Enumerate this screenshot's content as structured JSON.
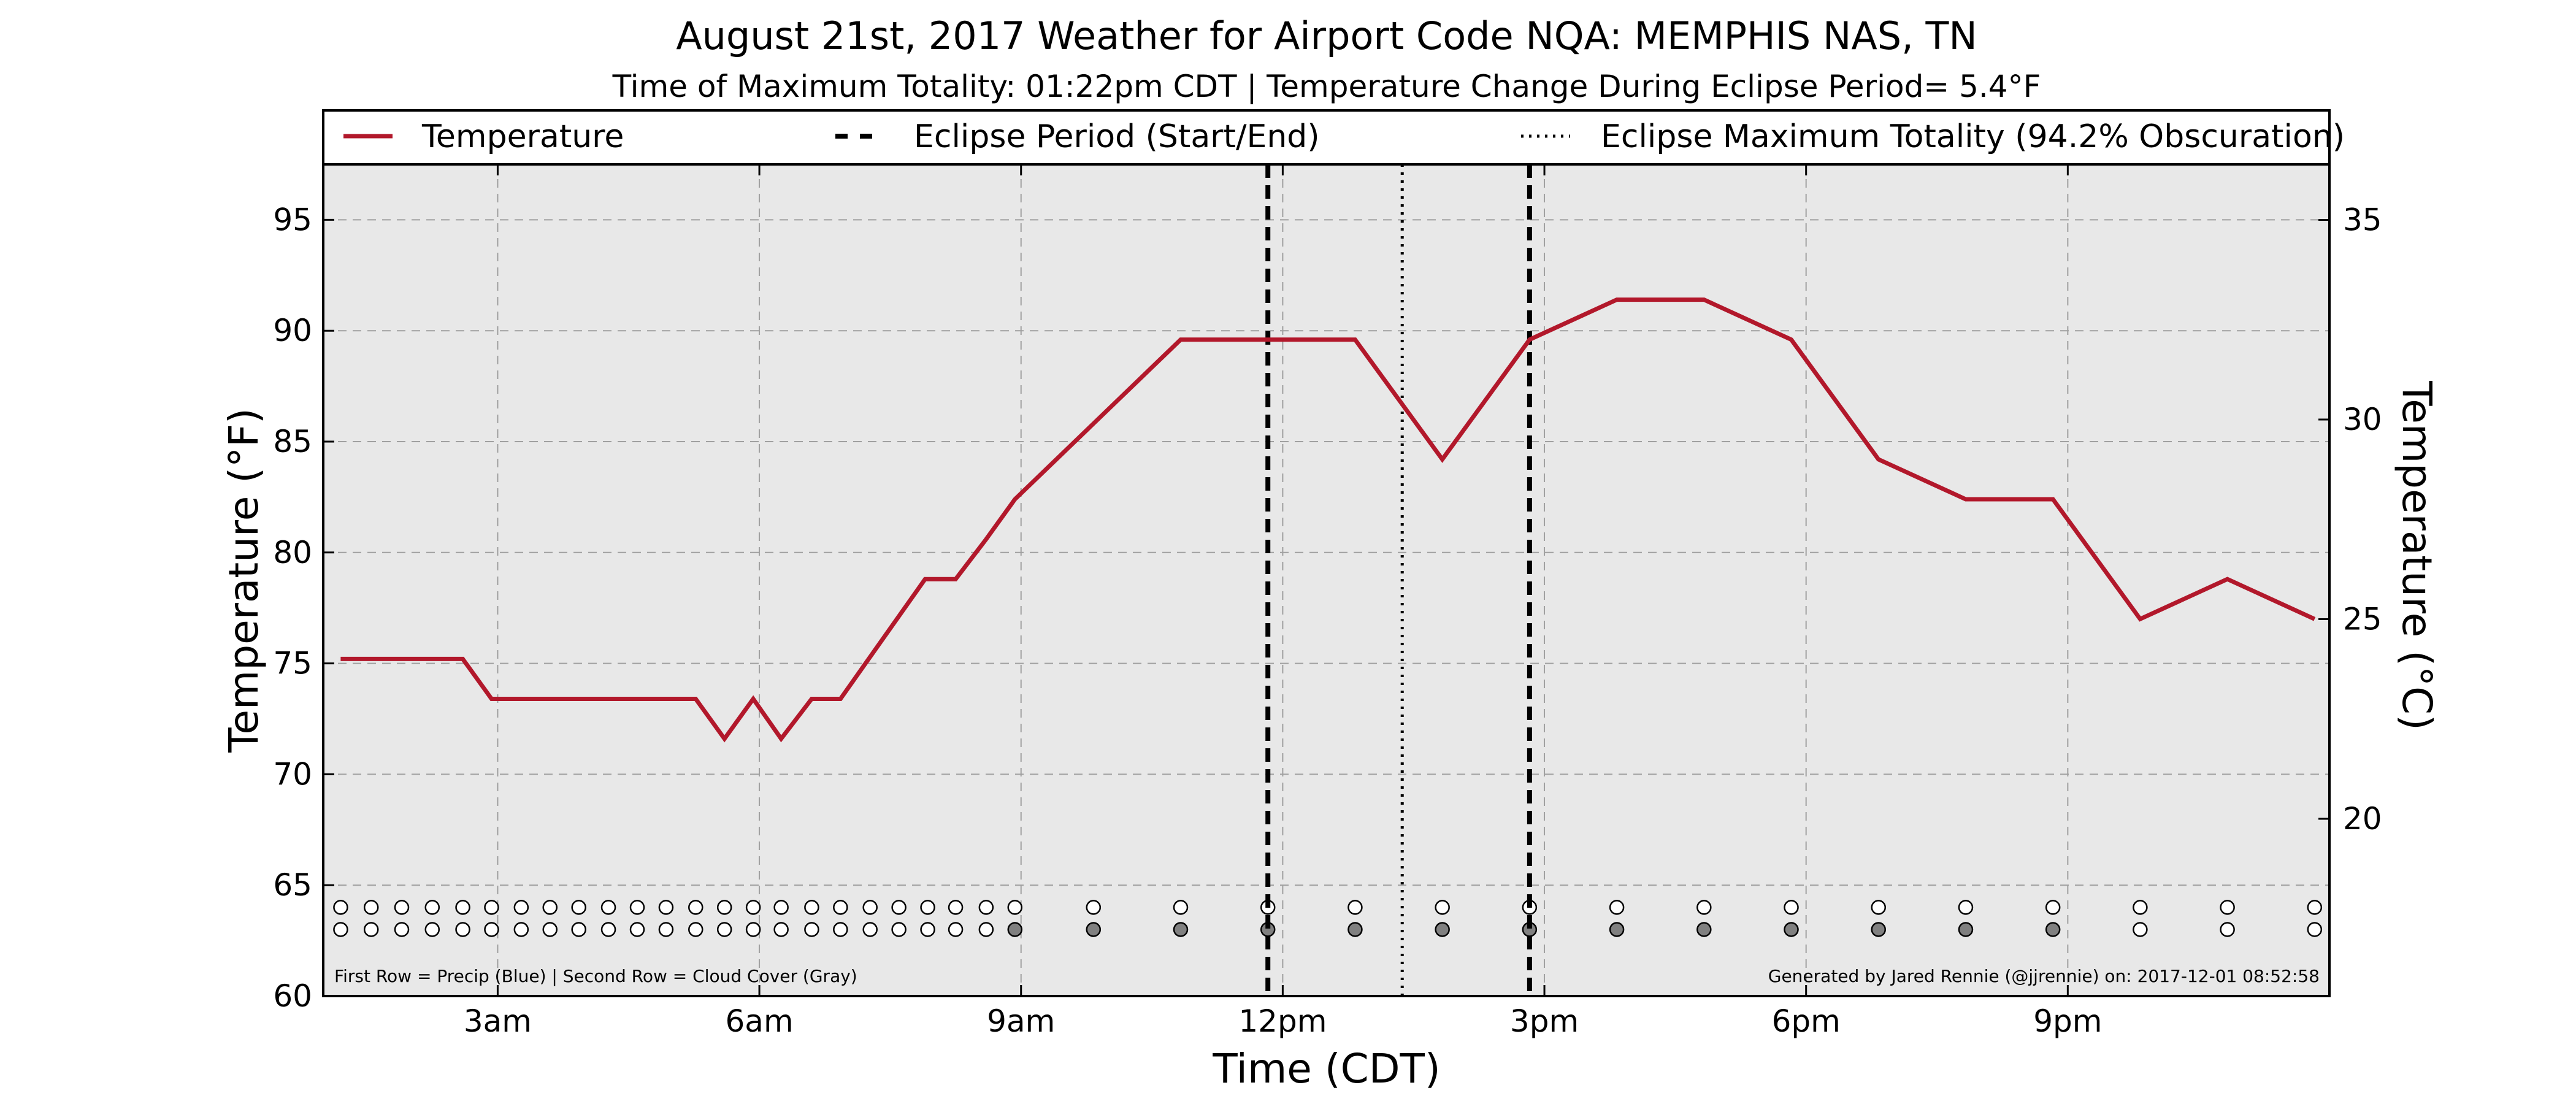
{
  "chart_data": {
    "type": "line",
    "title": "August 21st, 2017 Weather for Airport Code NQA: MEMPHIS NAS, TN",
    "subtitle": "Time of Maximum Totality: 01:22pm CDT | Temperature Change During Eclipse Period= 5.4°F",
    "xlabel": "Time (CDT)",
    "ylabel": "Temperature (°F)",
    "y2label": "Temperature (°C)",
    "xlim": [
      1.0,
      24.0
    ],
    "ylim": [
      60,
      97.5
    ],
    "y2lim": [
      15.56,
      36.39
    ],
    "x_ticks": [
      {
        "value": 3,
        "label": "3am"
      },
      {
        "value": 6,
        "label": "6am"
      },
      {
        "value": 9,
        "label": "9am"
      },
      {
        "value": 12,
        "label": "12pm"
      },
      {
        "value": 15,
        "label": "3pm"
      },
      {
        "value": 18,
        "label": "6pm"
      },
      {
        "value": 21,
        "label": "9pm"
      }
    ],
    "y_ticks": [
      60,
      65,
      70,
      75,
      80,
      85,
      90,
      95
    ],
    "y2_ticks": [
      15,
      20,
      25,
      30,
      35
    ],
    "grid": true,
    "legend_position": "top",
    "background": "#e8e8e8",
    "series": [
      {
        "name": "Temperature",
        "color": "#b2182b",
        "x": [
          1.2,
          2.6,
          2.93,
          5.27,
          5.6,
          5.93,
          6.25,
          6.6,
          6.93,
          7.9,
          8.25,
          8.6,
          8.93,
          10.83,
          11.83,
          12.83,
          13.83,
          14.83,
          15.83,
          16.83,
          17.83,
          18.83,
          19.83,
          20.83,
          21.83,
          22.83,
          23.83
        ],
        "y": [
          75.2,
          75.2,
          73.4,
          73.4,
          71.6,
          73.4,
          71.6,
          73.4,
          73.4,
          78.8,
          78.8,
          80.6,
          82.4,
          89.6,
          89.6,
          89.6,
          84.2,
          89.6,
          91.4,
          91.4,
          89.6,
          84.2,
          82.4,
          82.4,
          77.0,
          78.8,
          77.0
        ]
      },
      {
        "name": "Eclipse Period (Start/End)",
        "color": "#000000",
        "x": [
          11.83,
          14.83
        ]
      },
      {
        "name": "Eclipse Maximum Totality (94.2% Obscuration)",
        "color": "#000000",
        "x": [
          13.37
        ]
      }
    ],
    "precip_row": {
      "y": 64,
      "x": [
        1.2,
        1.55,
        1.9,
        2.25,
        2.6,
        2.93,
        3.27,
        3.6,
        3.93,
        4.27,
        4.6,
        4.93,
        5.27,
        5.6,
        5.93,
        6.25,
        6.6,
        6.93,
        7.27,
        7.6,
        7.93,
        8.25,
        8.6,
        8.93,
        9.83,
        10.83,
        11.83,
        12.83,
        13.83,
        14.83,
        15.83,
        16.83,
        17.83,
        18.83,
        19.83,
        20.83,
        21.83,
        22.83,
        23.83
      ],
      "fill": "#ffffff"
    },
    "cloud_row": {
      "y": 63,
      "x": [
        1.2,
        1.55,
        1.9,
        2.25,
        2.6,
        2.93,
        3.27,
        3.6,
        3.93,
        4.27,
        4.6,
        4.93,
        5.27,
        5.6,
        5.93,
        6.25,
        6.6,
        6.93,
        7.27,
        7.6,
        7.93,
        8.25,
        8.6,
        8.93,
        9.83,
        10.83,
        11.83,
        12.83,
        13.83,
        14.83,
        15.83,
        16.83,
        17.83,
        18.83,
        19.83,
        20.83,
        21.83,
        22.83,
        23.83
      ],
      "fills": [
        "#ffffff",
        "#ffffff",
        "#ffffff",
        "#ffffff",
        "#ffffff",
        "#ffffff",
        "#ffffff",
        "#ffffff",
        "#ffffff",
        "#ffffff",
        "#ffffff",
        "#ffffff",
        "#ffffff",
        "#ffffff",
        "#ffffff",
        "#ffffff",
        "#ffffff",
        "#ffffff",
        "#ffffff",
        "#ffffff",
        "#ffffff",
        "#ffffff",
        "#ffffff",
        "#808080",
        "#808080",
        "#808080",
        "#808080",
        "#808080",
        "#808080",
        "#808080",
        "#808080",
        "#808080",
        "#808080",
        "#808080",
        "#808080",
        "#808080",
        "#ffffff",
        "#ffffff",
        "#ffffff"
      ]
    },
    "footnote_left": "First Row = Precip (Blue) | Second Row = Cloud Cover (Gray)",
    "footnote_right": "Generated by Jared Rennie (@jjrennie) on: 2017-12-01 08:52:58"
  }
}
